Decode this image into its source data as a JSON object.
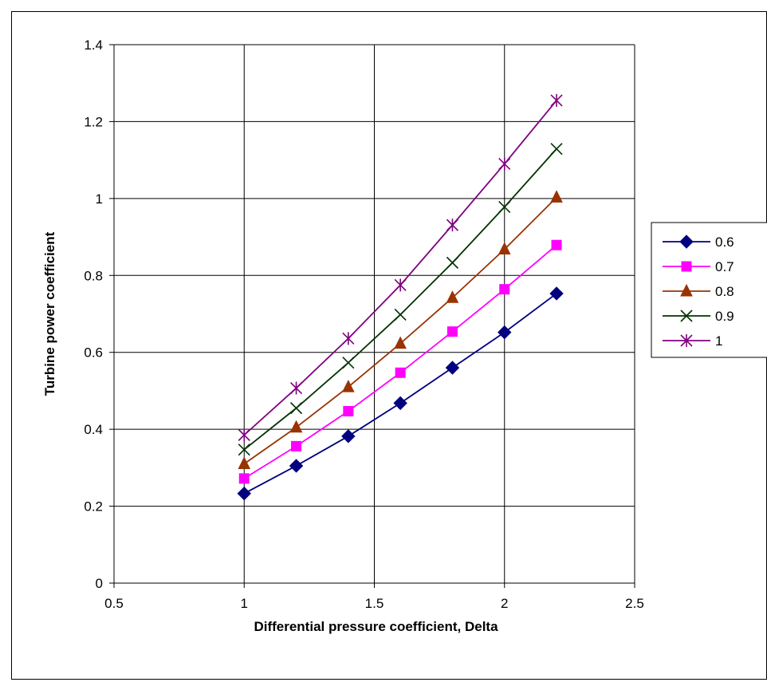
{
  "chart_data": {
    "type": "line",
    "xlabel": "Differential pressure coefficient, Delta",
    "ylabel": "Turbine power coefficient",
    "xlim": [
      0.5,
      2.5
    ],
    "ylim": [
      0,
      1.4
    ],
    "x_ticks": [
      "0.5",
      "1",
      "1.5",
      "2",
      "2.5"
    ],
    "y_ticks": [
      "0",
      "0.2",
      "0.4",
      "0.6",
      "0.8",
      "1",
      "1.2",
      "1.4"
    ],
    "grid": "major",
    "legend_position": "right",
    "x": [
      1.0,
      1.2,
      1.4,
      1.6,
      1.8,
      2.0,
      2.2
    ],
    "series": [
      {
        "name": "0.6",
        "color": "#000080",
        "marker": "diamond",
        "values": [
          0.233,
          0.305,
          0.382,
          0.468,
          0.56,
          0.652,
          0.753
        ]
      },
      {
        "name": "0.7",
        "color": "#ff00ff",
        "marker": "square",
        "values": [
          0.272,
          0.356,
          0.447,
          0.547,
          0.654,
          0.764,
          0.879
        ]
      },
      {
        "name": "0.8",
        "color": "#993300",
        "marker": "triangle",
        "values": [
          0.31,
          0.405,
          0.51,
          0.623,
          0.742,
          0.868,
          1.003
        ]
      },
      {
        "name": "0.9",
        "color": "#003300",
        "marker": "x",
        "values": [
          0.347,
          0.455,
          0.573,
          0.698,
          0.833,
          0.978,
          1.129
        ]
      },
      {
        "name": "1",
        "color": "#800080",
        "marker": "star",
        "values": [
          0.385,
          0.507,
          0.636,
          0.775,
          0.931,
          1.09,
          1.255
        ]
      }
    ]
  }
}
